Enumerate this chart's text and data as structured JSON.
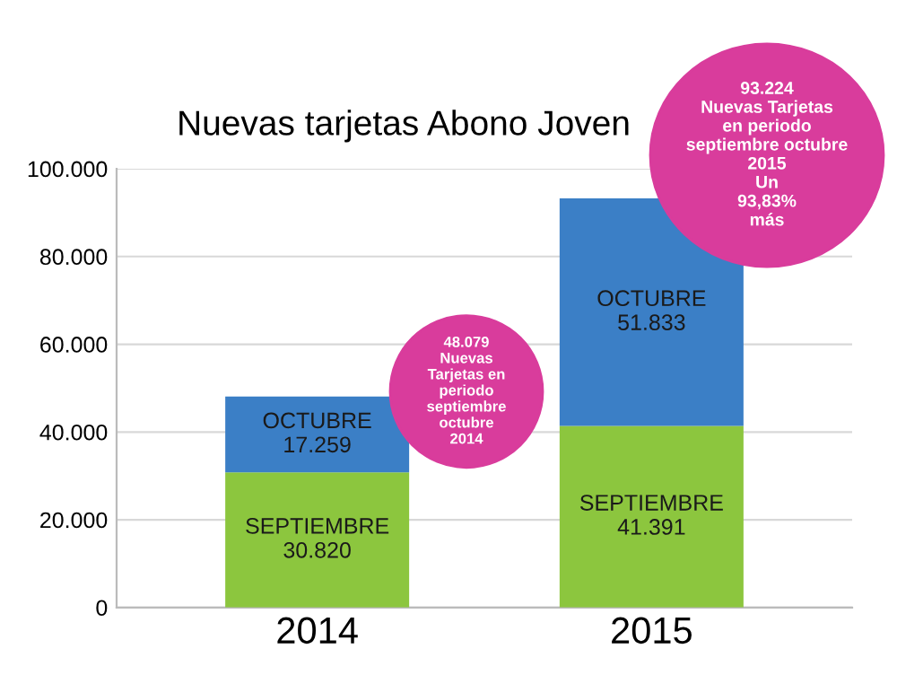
{
  "chart_data": {
    "type": "bar",
    "title": "Nuevas tarjetas Abono Joven",
    "stacked": true,
    "categories": [
      "2014",
      "2015"
    ],
    "series": [
      {
        "name": "SEPTIEMBRE",
        "color": "#8cc63e",
        "values": [
          30820,
          41391
        ],
        "value_labels": [
          "30.820",
          "41.391"
        ]
      },
      {
        "name": "OCTUBRE",
        "color": "#3b7fc6",
        "values": [
          17259,
          51833
        ],
        "value_labels": [
          "17.259",
          "51.833"
        ]
      }
    ],
    "ylim": [
      0,
      100000
    ],
    "yticks": [
      {
        "value": 0,
        "label": "0"
      },
      {
        "value": 20000,
        "label": "20.000"
      },
      {
        "value": 40000,
        "label": "40.000"
      },
      {
        "value": 60000,
        "label": "60.000"
      },
      {
        "value": 80000,
        "label": "80.000"
      },
      {
        "value": 100000,
        "label": "100.000"
      }
    ],
    "grid": "y",
    "legend": false,
    "annotations": [
      "48.079\nNuevas\nTarjetas en\nperiodo\nseptiembre\noctubre\n2014",
      "93.224\nNuevas Tarjetas\nen periodo\nseptiembre octubre\n2015\nUn\n93,83%\nmás"
    ]
  }
}
